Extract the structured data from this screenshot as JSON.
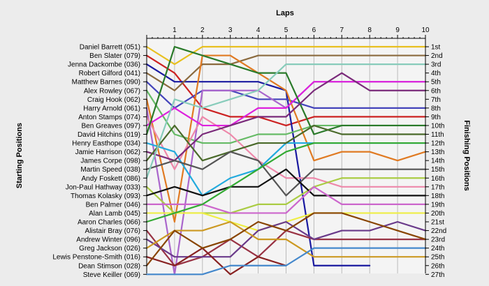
{
  "chart_data": {
    "type": "line",
    "title": "Laps",
    "xlabel": "Laps",
    "ylabel_left": "Starting Positions",
    "ylabel_right": "Finishing Positions",
    "x_ticks": [
      "1",
      "2",
      "3",
      "4",
      "5",
      "6",
      "7",
      "8",
      "9",
      "10"
    ],
    "finishing_labels": [
      "1st",
      "2nd",
      "3rd",
      "4th",
      "5th",
      "6th",
      "7th",
      "8th",
      "9th",
      "10th",
      "11th",
      "12th",
      "13th",
      "14th",
      "15th",
      "16th",
      "17th",
      "18th",
      "19th",
      "20th",
      "21st",
      "22nd",
      "23rd",
      "24th",
      "25th",
      "26th",
      "27th"
    ],
    "ylim": [
      1,
      27
    ],
    "xlim": [
      0,
      10
    ],
    "grid": "vertical",
    "series": [
      {
        "name": "Daniel Barrett (051)",
        "color": "#e8c020",
        "positions": [
          1,
          3,
          1,
          1,
          1,
          1,
          1,
          1,
          1,
          1,
          1
        ]
      },
      {
        "name": "Ben Slater (079)",
        "color": "#cc2222",
        "positions": [
          2,
          4,
          8,
          9,
          9,
          10,
          9,
          9,
          9,
          9,
          9
        ]
      },
      {
        "name": "Jenna Dackombe (036)",
        "color": "#1a1aa0",
        "positions": [
          3,
          5,
          5,
          5,
          5,
          6,
          26,
          26,
          26
        ]
      },
      {
        "name": "Robert Gilford (041)",
        "color": "#8b6a3e",
        "positions": [
          4,
          6,
          3,
          3,
          2,
          2,
          2,
          2,
          2,
          2,
          2
        ]
      },
      {
        "name": "Matthew Barnes (090)",
        "color": "#4444bb",
        "positions": [
          5,
          8,
          6,
          6,
          7,
          7,
          8,
          8,
          8,
          8,
          8
        ]
      },
      {
        "name": "Alex Rowley (067)",
        "color": "#66bb66",
        "positions": [
          6,
          11,
          12,
          12,
          11,
          11,
          10,
          10,
          10,
          10,
          10
        ]
      },
      {
        "name": "Craig Hook (062)",
        "color": "#e07a22",
        "positions": [
          7,
          21,
          2,
          2,
          4,
          6,
          14,
          13,
          13,
          14,
          13
        ]
      },
      {
        "name": "Harry Arnold (061)",
        "color": "#aa66cc",
        "positions": [
          8,
          27,
          6,
          6,
          6,
          8,
          5,
          5,
          5,
          5,
          5
        ]
      },
      {
        "name": "Anton Stamps (074)",
        "color": "#ee88aa",
        "positions": [
          9,
          15,
          9,
          11,
          14,
          16,
          16,
          17,
          17,
          17,
          17
        ]
      },
      {
        "name": "Ben Greaves (097)",
        "color": "#dd22dd",
        "positions": [
          10,
          8,
          10,
          10,
          8,
          8,
          5,
          5,
          5,
          5,
          5
        ]
      },
      {
        "name": "David Hitchins (019)",
        "color": "#2a7a2a",
        "positions": [
          11,
          1,
          2,
          3,
          4,
          4,
          11,
          10,
          10,
          10,
          10
        ]
      },
      {
        "name": "Henry Easthope (034)",
        "color": "#22aadd",
        "positions": [
          12,
          13,
          18,
          16,
          15,
          12,
          12,
          12,
          12,
          12,
          12
        ]
      },
      {
        "name": "Jamie Harrison (062)",
        "color": "#7a2a7a",
        "positions": [
          13,
          14,
          11,
          10,
          9,
          9,
          6,
          4,
          6,
          6,
          6
        ]
      },
      {
        "name": "James Corpe (098)",
        "color": "#4a6a2a",
        "positions": [
          14,
          10,
          14,
          13,
          12,
          12,
          10,
          11,
          11,
          11,
          11
        ]
      },
      {
        "name": "Martin Speed (038)",
        "color": "#555555",
        "positions": [
          15,
          14,
          15,
          13,
          14,
          18,
          15,
          15,
          15,
          15,
          15
        ]
      },
      {
        "name": "Andy Foskett (086)",
        "color": "#88ccbb",
        "positions": [
          16,
          7,
          8,
          7,
          6,
          3,
          3,
          3,
          3,
          3,
          3
        ]
      },
      {
        "name": "Jon-Paul Hathway (033)",
        "color": "#aacc44",
        "positions": [
          17,
          20,
          20,
          20,
          19,
          19,
          17,
          16,
          16,
          16,
          16
        ]
      },
      {
        "name": "Thomas Kolasky (093)",
        "color": "#111111",
        "positions": [
          18,
          17,
          18,
          17,
          17,
          15,
          18,
          18,
          18,
          18,
          18
        ]
      },
      {
        "name": "Ben Palmer (046)",
        "color": "#cc66cc",
        "positions": [
          19,
          19,
          19,
          20,
          20,
          20,
          17,
          19,
          19,
          19,
          19
        ]
      },
      {
        "name": "Alan Lamb (045)",
        "color": "#eeee44",
        "positions": [
          20,
          20,
          20,
          21,
          22,
          21,
          20,
          20,
          20,
          20,
          20
        ]
      },
      {
        "name": "Aaron Charles (066)",
        "color": "#33aa33",
        "positions": [
          21,
          20,
          19,
          17,
          15,
          13,
          12,
          12,
          12,
          12,
          12
        ]
      },
      {
        "name": "Alistair Bray (076)",
        "color": "#993344",
        "positions": [
          22,
          26,
          25,
          23,
          25,
          22,
          23,
          23,
          23,
          23,
          23
        ]
      },
      {
        "name": "Andrew Winter (096)",
        "color": "#6a3a8a",
        "positions": [
          23,
          25,
          25,
          25,
          22,
          21,
          23,
          22,
          22,
          21,
          22
        ]
      },
      {
        "name": "Greg Jackson (026)",
        "color": "#cc9922",
        "positions": [
          24,
          22,
          22,
          21,
          23,
          23,
          25,
          25,
          25,
          25,
          25
        ]
      },
      {
        "name": "Lewis Penstone-Smith (016)",
        "color": "#882222",
        "positions": [
          25,
          26,
          24,
          27,
          25,
          26
        ]
      },
      {
        "name": "Dean Stimson (028)",
        "color": "#884400",
        "positions": [
          26,
          22,
          24,
          23,
          21,
          22,
          20,
          20,
          21,
          22,
          23
        ]
      },
      {
        "name": "Steve Keiller (069)",
        "color": "#4488cc",
        "positions": [
          27,
          27,
          27,
          26,
          26,
          26,
          24,
          24,
          24,
          24,
          24
        ]
      }
    ]
  }
}
